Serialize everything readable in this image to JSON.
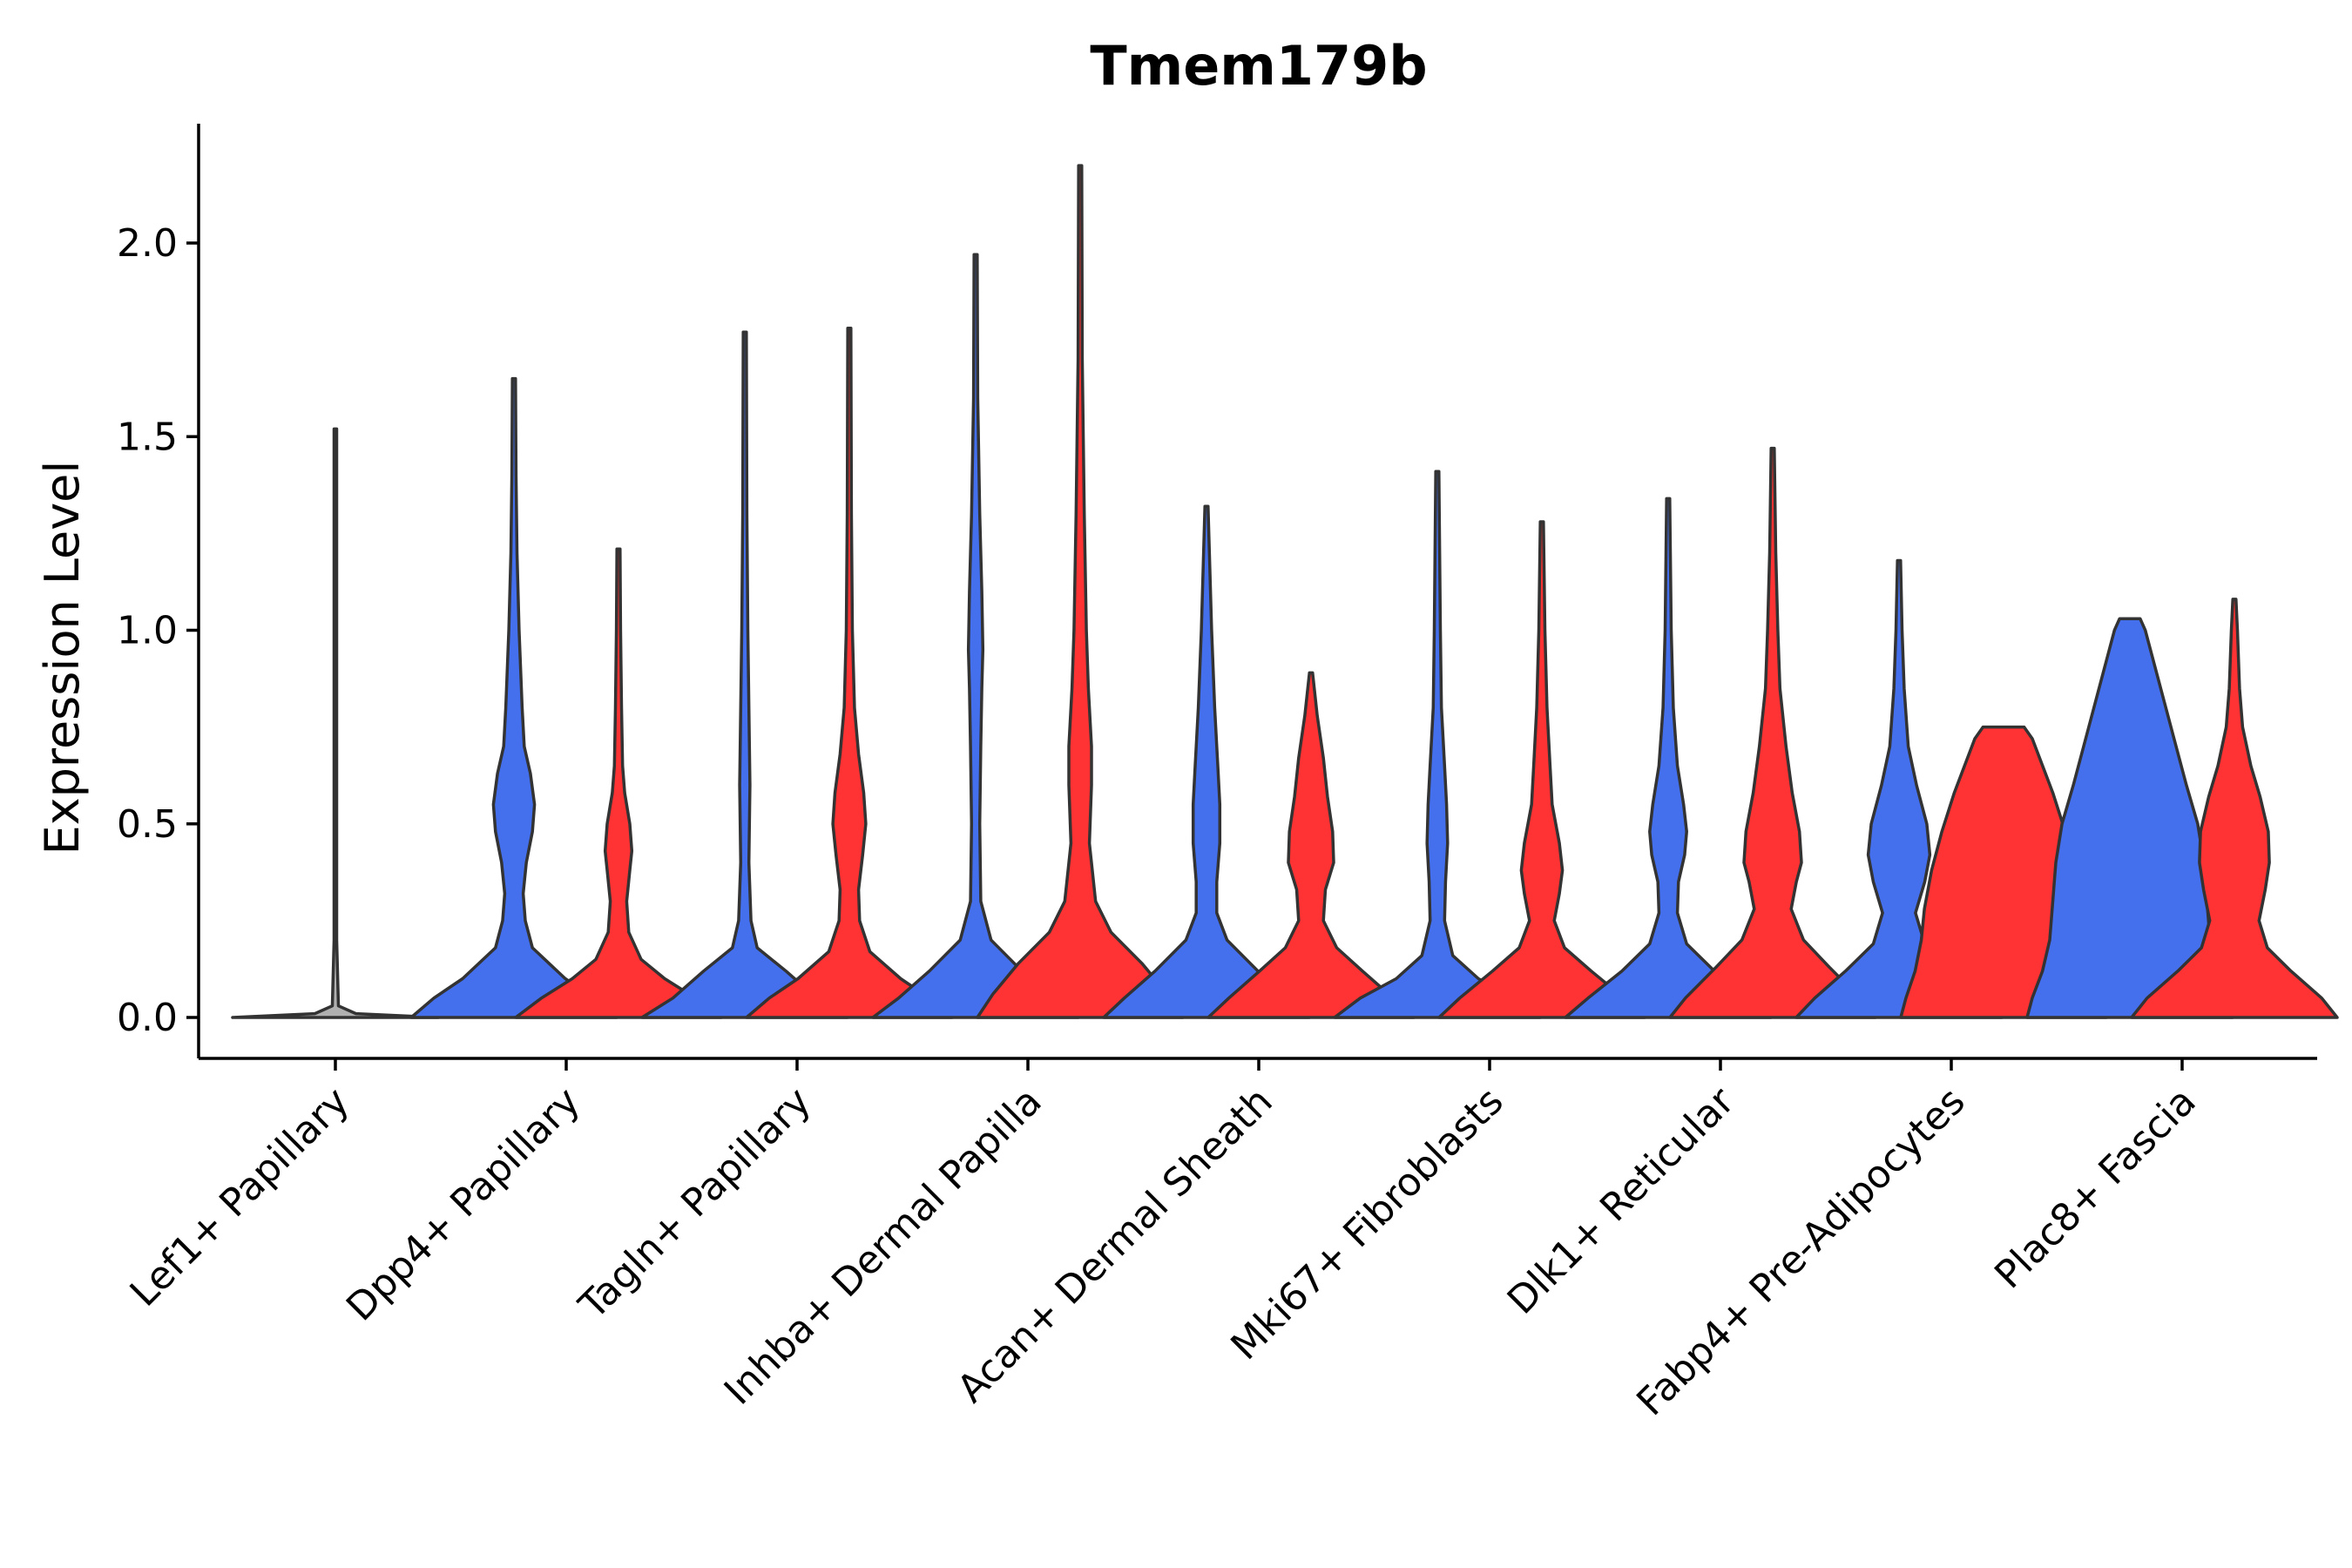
{
  "chart_data": {
    "type": "violin",
    "title": "Tmem179b",
    "xlabel": "",
    "ylabel": "Expression Level",
    "ylim": [
      -0.11,
      2.32
    ],
    "yticks": [
      0.0,
      0.5,
      1.0,
      1.5,
      2.0
    ],
    "ytick_labels": [
      "0.0",
      "0.5",
      "1.0",
      "1.5",
      "2.0"
    ],
    "grid": false,
    "legend": "none",
    "colors": {
      "blue": "#4470EE",
      "red": "#FF3333",
      "gray": "#B0B0B0",
      "outline": "#333333"
    },
    "categories": [
      "Lef1+ Papillary",
      "Dpp4+ Papillary",
      "Tagln+ Papillary",
      "Inhba+ Dermal Papilla",
      "Acan+ Dermal Sheath",
      "Mki67+ Fibroblasts",
      "Dlk1+ Reticular",
      "Fabp4+ Pre-Adipocytes",
      "Plac8+ Fascia"
    ],
    "violins": [
      {
        "category": "Lef1+ Papillary",
        "group": "single",
        "color": "gray",
        "max": 1.52,
        "profile": [
          [
            0,
            1.0
          ],
          [
            0.01,
            0.2
          ],
          [
            0.03,
            0.03
          ],
          [
            0.2,
            0.01
          ],
          [
            1.52,
            0.01
          ]
        ]
      },
      {
        "category": "Dpp4+ Papillary",
        "group": "blue",
        "color": "blue",
        "max": 1.65,
        "profile": [
          [
            0,
            1.0
          ],
          [
            0.05,
            0.78
          ],
          [
            0.1,
            0.5
          ],
          [
            0.18,
            0.18
          ],
          [
            0.25,
            0.11
          ],
          [
            0.32,
            0.09
          ],
          [
            0.4,
            0.12
          ],
          [
            0.48,
            0.18
          ],
          [
            0.55,
            0.2
          ],
          [
            0.63,
            0.16
          ],
          [
            0.7,
            0.1
          ],
          [
            0.8,
            0.08
          ],
          [
            1.0,
            0.05
          ],
          [
            1.2,
            0.03
          ],
          [
            1.4,
            0.02
          ],
          [
            1.65,
            0.015
          ]
        ]
      },
      {
        "category": "Dpp4+ Papillary",
        "group": "red",
        "color": "red",
        "max": 1.21,
        "profile": [
          [
            0,
            1.0
          ],
          [
            0.05,
            0.75
          ],
          [
            0.1,
            0.45
          ],
          [
            0.15,
            0.22
          ],
          [
            0.22,
            0.1
          ],
          [
            0.3,
            0.08
          ],
          [
            0.38,
            0.11
          ],
          [
            0.43,
            0.13
          ],
          [
            0.5,
            0.11
          ],
          [
            0.58,
            0.06
          ],
          [
            0.65,
            0.04
          ],
          [
            0.8,
            0.03
          ],
          [
            1.0,
            0.02
          ],
          [
            1.21,
            0.015
          ]
        ]
      },
      {
        "category": "Tagln+ Papillary",
        "group": "blue",
        "color": "blue",
        "max": 1.77,
        "profile": [
          [
            0,
            1.0
          ],
          [
            0.05,
            0.7
          ],
          [
            0.12,
            0.4
          ],
          [
            0.18,
            0.12
          ],
          [
            0.25,
            0.06
          ],
          [
            0.4,
            0.04
          ],
          [
            0.6,
            0.05
          ],
          [
            0.8,
            0.04
          ],
          [
            1.0,
            0.03
          ],
          [
            1.3,
            0.02
          ],
          [
            1.77,
            0.015
          ]
        ]
      },
      {
        "category": "Tagln+ Papillary",
        "group": "red",
        "color": "red",
        "max": 1.78,
        "profile": [
          [
            0,
            1.0
          ],
          [
            0.05,
            0.78
          ],
          [
            0.1,
            0.5
          ],
          [
            0.17,
            0.2
          ],
          [
            0.25,
            0.1
          ],
          [
            0.33,
            0.09
          ],
          [
            0.42,
            0.13
          ],
          [
            0.5,
            0.16
          ],
          [
            0.58,
            0.14
          ],
          [
            0.68,
            0.09
          ],
          [
            0.8,
            0.05
          ],
          [
            1.0,
            0.03
          ],
          [
            1.3,
            0.02
          ],
          [
            1.78,
            0.015
          ]
        ]
      },
      {
        "category": "Inhba+ Dermal Papilla",
        "group": "blue",
        "color": "blue",
        "max": 1.97,
        "profile": [
          [
            0,
            1.0
          ],
          [
            0.05,
            0.75
          ],
          [
            0.12,
            0.45
          ],
          [
            0.2,
            0.15
          ],
          [
            0.3,
            0.05
          ],
          [
            0.5,
            0.04
          ],
          [
            0.7,
            0.05
          ],
          [
            0.85,
            0.06
          ],
          [
            0.95,
            0.07
          ],
          [
            1.1,
            0.06
          ],
          [
            1.3,
            0.04
          ],
          [
            1.6,
            0.02
          ],
          [
            1.97,
            0.015
          ]
        ]
      },
      {
        "category": "Inhba+ Dermal Papilla",
        "group": "red",
        "color": "red",
        "max": 2.2,
        "profile": [
          [
            0,
            1.0
          ],
          [
            0.06,
            0.85
          ],
          [
            0.14,
            0.6
          ],
          [
            0.22,
            0.3
          ],
          [
            0.3,
            0.15
          ],
          [
            0.45,
            0.09
          ],
          [
            0.6,
            0.11
          ],
          [
            0.7,
            0.11
          ],
          [
            0.85,
            0.08
          ],
          [
            1.0,
            0.06
          ],
          [
            1.3,
            0.04
          ],
          [
            1.7,
            0.02
          ],
          [
            2.2,
            0.015
          ]
        ]
      },
      {
        "category": "Acan+ Dermal Sheath",
        "group": "blue",
        "color": "blue",
        "max": 1.32,
        "profile": [
          [
            0,
            1.0
          ],
          [
            0.05,
            0.8
          ],
          [
            0.12,
            0.5
          ],
          [
            0.2,
            0.2
          ],
          [
            0.27,
            0.1
          ],
          [
            0.35,
            0.1
          ],
          [
            0.45,
            0.13
          ],
          [
            0.55,
            0.13
          ],
          [
            0.65,
            0.11
          ],
          [
            0.8,
            0.08
          ],
          [
            1.0,
            0.05
          ],
          [
            1.32,
            0.015
          ]
        ]
      },
      {
        "category": "Acan+ Dermal Sheath",
        "group": "red",
        "color": "red",
        "max": 0.89,
        "profile": [
          [
            0,
            1.0
          ],
          [
            0.05,
            0.8
          ],
          [
            0.12,
            0.5
          ],
          [
            0.18,
            0.25
          ],
          [
            0.25,
            0.12
          ],
          [
            0.33,
            0.14
          ],
          [
            0.4,
            0.22
          ],
          [
            0.48,
            0.21
          ],
          [
            0.57,
            0.16
          ],
          [
            0.67,
            0.12
          ],
          [
            0.78,
            0.06
          ],
          [
            0.89,
            0.015
          ]
        ]
      },
      {
        "category": "Mki67+ Fibroblasts",
        "group": "blue",
        "color": "blue",
        "max": 1.41,
        "profile": [
          [
            0,
            1.0
          ],
          [
            0.05,
            0.75
          ],
          [
            0.1,
            0.4
          ],
          [
            0.16,
            0.15
          ],
          [
            0.25,
            0.07
          ],
          [
            0.35,
            0.08
          ],
          [
            0.45,
            0.1
          ],
          [
            0.55,
            0.09
          ],
          [
            0.65,
            0.07
          ],
          [
            0.8,
            0.04
          ],
          [
            1.0,
            0.03
          ],
          [
            1.41,
            0.015
          ]
        ]
      },
      {
        "category": "Mki67+ Fibroblasts",
        "group": "red",
        "color": "red",
        "max": 1.28,
        "profile": [
          [
            0,
            1.0
          ],
          [
            0.05,
            0.8
          ],
          [
            0.12,
            0.48
          ],
          [
            0.18,
            0.22
          ],
          [
            0.25,
            0.12
          ],
          [
            0.32,
            0.17
          ],
          [
            0.38,
            0.2
          ],
          [
            0.45,
            0.17
          ],
          [
            0.55,
            0.1
          ],
          [
            0.65,
            0.08
          ],
          [
            0.8,
            0.05
          ],
          [
            1.0,
            0.03
          ],
          [
            1.28,
            0.015
          ]
        ]
      },
      {
        "category": "Dlk1+ Reticular",
        "group": "blue",
        "color": "blue",
        "max": 1.34,
        "profile": [
          [
            0,
            1.0
          ],
          [
            0.05,
            0.78
          ],
          [
            0.12,
            0.45
          ],
          [
            0.19,
            0.18
          ],
          [
            0.27,
            0.09
          ],
          [
            0.35,
            0.1
          ],
          [
            0.42,
            0.16
          ],
          [
            0.48,
            0.18
          ],
          [
            0.55,
            0.15
          ],
          [
            0.65,
            0.09
          ],
          [
            0.8,
            0.05
          ],
          [
            1.0,
            0.03
          ],
          [
            1.34,
            0.015
          ]
        ]
      },
      {
        "category": "Dlk1+ Reticular",
        "group": "red",
        "color": "red",
        "max": 1.47,
        "profile": [
          [
            0,
            1.0
          ],
          [
            0.05,
            0.85
          ],
          [
            0.13,
            0.55
          ],
          [
            0.2,
            0.3
          ],
          [
            0.28,
            0.18
          ],
          [
            0.35,
            0.23
          ],
          [
            0.4,
            0.28
          ],
          [
            0.48,
            0.26
          ],
          [
            0.58,
            0.19
          ],
          [
            0.7,
            0.13
          ],
          [
            0.85,
            0.07
          ],
          [
            1.0,
            0.05
          ],
          [
            1.2,
            0.03
          ],
          [
            1.47,
            0.015
          ]
        ]
      },
      {
        "category": "Fabp4+ Pre-Adipocytes",
        "group": "blue",
        "color": "blue",
        "max": 1.18,
        "profile": [
          [
            0,
            1.0
          ],
          [
            0.05,
            0.82
          ],
          [
            0.12,
            0.52
          ],
          [
            0.19,
            0.25
          ],
          [
            0.27,
            0.16
          ],
          [
            0.35,
            0.25
          ],
          [
            0.42,
            0.3
          ],
          [
            0.5,
            0.27
          ],
          [
            0.6,
            0.17
          ],
          [
            0.7,
            0.09
          ],
          [
            0.85,
            0.05
          ],
          [
            1.0,
            0.03
          ],
          [
            1.18,
            0.015
          ]
        ]
      },
      {
        "category": "Fabp4+ Pre-Adipocytes",
        "group": "red",
        "color": "red",
        "max": 0.75,
        "profile": [
          [
            0,
            1.0
          ],
          [
            0.05,
            0.95
          ],
          [
            0.12,
            0.86
          ],
          [
            0.2,
            0.8
          ],
          [
            0.28,
            0.77
          ],
          [
            0.38,
            0.7
          ],
          [
            0.48,
            0.6
          ],
          [
            0.58,
            0.48
          ],
          [
            0.65,
            0.38
          ],
          [
            0.72,
            0.28
          ],
          [
            0.75,
            0.2
          ]
        ]
      },
      {
        "category": "Plac8+ Fascia",
        "group": "blue",
        "color": "blue",
        "max": 1.03,
        "profile": [
          [
            0,
            1.0
          ],
          [
            0.05,
            0.95
          ],
          [
            0.12,
            0.85
          ],
          [
            0.2,
            0.78
          ],
          [
            0.3,
            0.75
          ],
          [
            0.4,
            0.72
          ],
          [
            0.5,
            0.66
          ],
          [
            0.6,
            0.55
          ],
          [
            0.7,
            0.45
          ],
          [
            0.8,
            0.35
          ],
          [
            0.9,
            0.25
          ],
          [
            1.0,
            0.15
          ],
          [
            1.03,
            0.1
          ]
        ]
      },
      {
        "category": "Plac8+ Fascia",
        "group": "red",
        "color": "red",
        "max": 1.08,
        "profile": [
          [
            0,
            1.0
          ],
          [
            0.05,
            0.85
          ],
          [
            0.12,
            0.55
          ],
          [
            0.18,
            0.32
          ],
          [
            0.25,
            0.24
          ],
          [
            0.33,
            0.3
          ],
          [
            0.4,
            0.34
          ],
          [
            0.48,
            0.33
          ],
          [
            0.57,
            0.25
          ],
          [
            0.65,
            0.16
          ],
          [
            0.75,
            0.08
          ],
          [
            0.85,
            0.05
          ],
          [
            1.0,
            0.03
          ],
          [
            1.08,
            0.015
          ]
        ]
      }
    ]
  }
}
